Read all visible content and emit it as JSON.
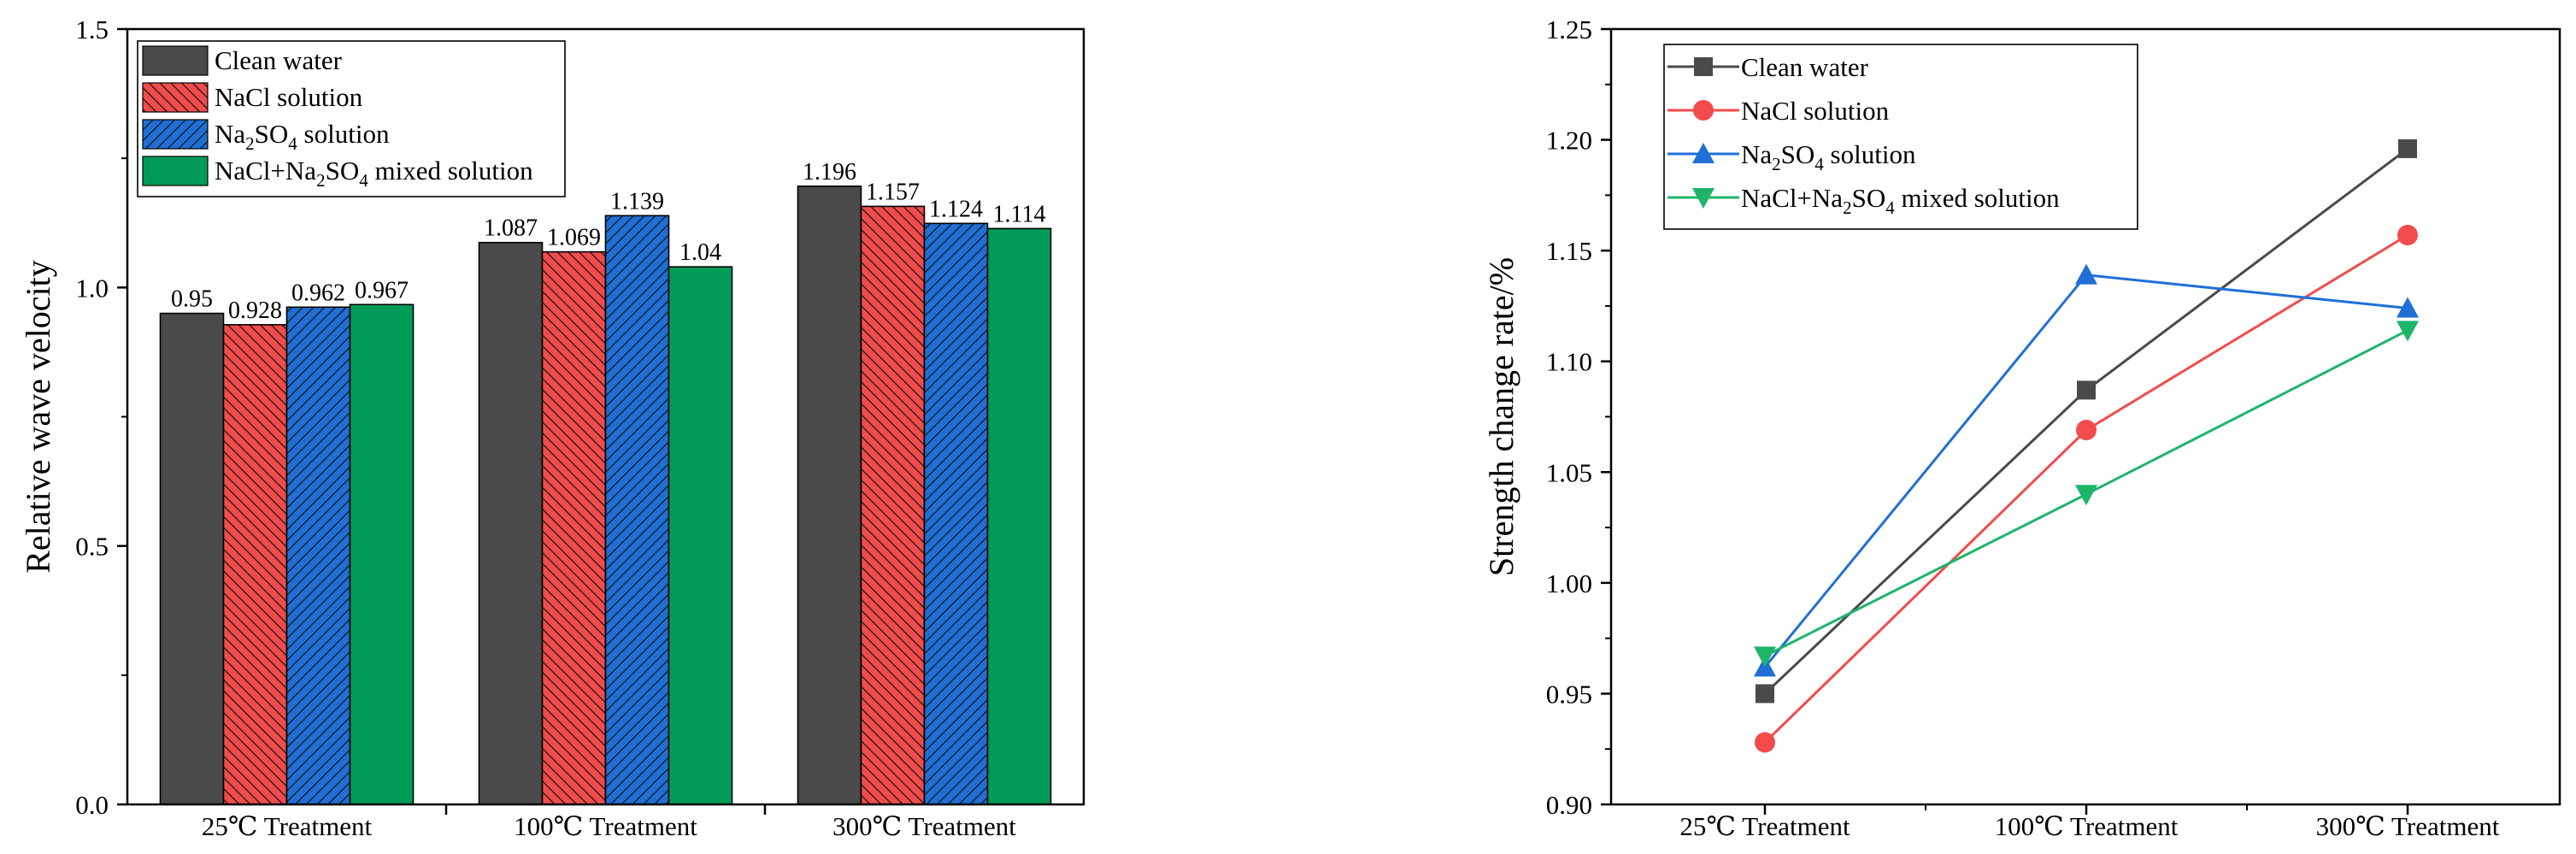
{
  "chart_data": [
    {
      "type": "bar",
      "title": "",
      "xlabel": "",
      "ylabel": "Relative wave velocity",
      "ylim": [
        0,
        1.5
      ],
      "yticks": [
        "0.0",
        "0.5",
        "1.0",
        "1.5"
      ],
      "grid": false,
      "legend_position": "top-left",
      "categories": [
        "25℃ Treatment",
        "100℃ Treatment",
        "300℃ Treatment"
      ],
      "series": [
        {
          "name": "Clean water",
          "values": [
            0.95,
            1.087,
            1.196
          ],
          "labels": [
            "0.95",
            "1.087",
            "1.196"
          ],
          "color": "#4a4a4a",
          "pattern": "solid"
        },
        {
          "name": "NaCl solution",
          "values": [
            0.928,
            1.069,
            1.157
          ],
          "labels": [
            "0.928",
            "1.069",
            "1.157"
          ],
          "color": "#f24b4b",
          "pattern": "hatch-up"
        },
        {
          "name": "Na2SO4 solution",
          "legend_parts": [
            "Na",
            "2",
            "SO",
            "4",
            " solution"
          ],
          "values": [
            0.962,
            1.139,
            1.124
          ],
          "labels": [
            "0.962",
            "1.139",
            "1.124"
          ],
          "color": "#1f6fd6",
          "pattern": "hatch-down"
        },
        {
          "name": "NaCl+Na2SO4 mixed solution",
          "legend_parts": [
            "NaCl+Na",
            "2",
            "SO",
            "4",
            " mixed solution"
          ],
          "values": [
            0.967,
            1.04,
            1.114
          ],
          "labels": [
            "0.967",
            "1.04",
            "1.114"
          ],
          "color": "#009b57",
          "pattern": "solid"
        }
      ]
    },
    {
      "type": "line",
      "title": "",
      "xlabel": "",
      "ylabel": "Strength change rate/%",
      "ylim": [
        0.9,
        1.25
      ],
      "yticks": [
        "0.90",
        "0.95",
        "1.00",
        "1.05",
        "1.10",
        "1.15",
        "1.20",
        "1.25"
      ],
      "grid": false,
      "legend_position": "top-left",
      "categories": [
        "25℃ Treatment",
        "100℃ Treatment",
        "300℃ Treatment"
      ],
      "series": [
        {
          "name": "Clean water",
          "values": [
            0.95,
            1.087,
            1.196
          ],
          "color": "#4a4a4a",
          "marker": "square"
        },
        {
          "name": "NaCl solution",
          "values": [
            0.928,
            1.069,
            1.157
          ],
          "color": "#f24b4b",
          "marker": "circle"
        },
        {
          "name": "Na2SO4 solution",
          "legend_parts": [
            "Na",
            "2",
            "SO",
            "4",
            " solution"
          ],
          "values": [
            0.962,
            1.139,
            1.124
          ],
          "color": "#1f6fd6",
          "marker": "triangle-up"
        },
        {
          "name": "NaCl+Na2SO4 mixed solution",
          "legend_parts": [
            "NaCl+Na",
            "2",
            "SO",
            "4",
            " mixed solution"
          ],
          "values": [
            0.967,
            1.04,
            1.114
          ],
          "color": "#1db56a",
          "marker": "triangle-down"
        }
      ]
    }
  ]
}
